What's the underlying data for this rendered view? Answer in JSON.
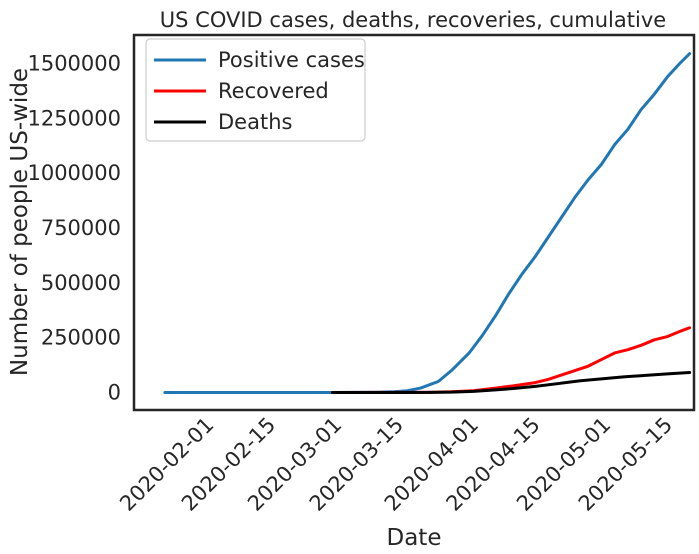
{
  "chart_data": {
    "type": "line",
    "title": "US COVID cases, deaths, recoveries, cumulative",
    "xlabel": "Date",
    "ylabel": "Number of people US-wide",
    "x_axis": {
      "type": "date",
      "range": [
        "2020-01-15",
        "2020-05-21"
      ],
      "ticks": [
        "2020-02-01",
        "2020-02-15",
        "2020-03-01",
        "2020-03-15",
        "2020-04-01",
        "2020-04-15",
        "2020-05-01",
        "2020-05-15"
      ]
    },
    "y_axis": {
      "range": [
        -80000,
        1630000
      ],
      "ticks": [
        0,
        250000,
        500000,
        750000,
        1000000,
        1250000,
        1500000
      ],
      "tick_labels": [
        "0",
        "250000",
        "500000",
        "750000",
        "1000000",
        "1250000",
        "1500000"
      ]
    },
    "grid": false,
    "legend": {
      "placement": "top-left",
      "entries": [
        "Positive cases",
        "Recovered",
        "Deaths"
      ]
    },
    "series": [
      {
        "name": "Positive cases",
        "color": "#1f77b4",
        "points": [
          [
            "2020-01-22",
            0
          ],
          [
            "2020-02-01",
            0
          ],
          [
            "2020-02-15",
            0
          ],
          [
            "2020-02-29",
            0
          ],
          [
            "2020-03-05",
            200
          ],
          [
            "2020-03-10",
            1000
          ],
          [
            "2020-03-14",
            3000
          ],
          [
            "2020-03-17",
            8000
          ],
          [
            "2020-03-20",
            20000
          ],
          [
            "2020-03-24",
            50000
          ],
          [
            "2020-03-27",
            100000
          ],
          [
            "2020-03-31",
            180000
          ],
          [
            "2020-04-03",
            260000
          ],
          [
            "2020-04-06",
            350000
          ],
          [
            "2020-04-09",
            450000
          ],
          [
            "2020-04-12",
            540000
          ],
          [
            "2020-04-15",
            620000
          ],
          [
            "2020-04-18",
            710000
          ],
          [
            "2020-04-21",
            800000
          ],
          [
            "2020-04-24",
            890000
          ],
          [
            "2020-04-27",
            970000
          ],
          [
            "2020-04-30",
            1040000
          ],
          [
            "2020-05-03",
            1130000
          ],
          [
            "2020-05-06",
            1200000
          ],
          [
            "2020-05-09",
            1290000
          ],
          [
            "2020-05-12",
            1360000
          ],
          [
            "2020-05-15",
            1440000
          ],
          [
            "2020-05-18",
            1505000
          ],
          [
            "2020-05-20",
            1545000
          ]
        ]
      },
      {
        "name": "Recovered",
        "color": "#ff0000",
        "points": [
          [
            "2020-02-29",
            0
          ],
          [
            "2020-03-15",
            200
          ],
          [
            "2020-03-22",
            500
          ],
          [
            "2020-03-27",
            3000
          ],
          [
            "2020-04-01",
            8000
          ],
          [
            "2020-04-06",
            20000
          ],
          [
            "2020-04-10",
            30000
          ],
          [
            "2020-04-15",
            45000
          ],
          [
            "2020-04-18",
            60000
          ],
          [
            "2020-04-21",
            80000
          ],
          [
            "2020-04-24",
            100000
          ],
          [
            "2020-04-27",
            120000
          ],
          [
            "2020-04-30",
            150000
          ],
          [
            "2020-05-03",
            180000
          ],
          [
            "2020-05-06",
            195000
          ],
          [
            "2020-05-09",
            215000
          ],
          [
            "2020-05-12",
            240000
          ],
          [
            "2020-05-15",
            255000
          ],
          [
            "2020-05-18",
            280000
          ],
          [
            "2020-05-20",
            295000
          ]
        ]
      },
      {
        "name": "Deaths",
        "color": "#000000",
        "points": [
          [
            "2020-02-29",
            0
          ],
          [
            "2020-03-15",
            60
          ],
          [
            "2020-03-22",
            400
          ],
          [
            "2020-03-27",
            1500
          ],
          [
            "2020-04-01",
            5000
          ],
          [
            "2020-04-06",
            12000
          ],
          [
            "2020-04-10",
            18000
          ],
          [
            "2020-04-15",
            28000
          ],
          [
            "2020-04-20",
            40000
          ],
          [
            "2020-04-25",
            53000
          ],
          [
            "2020-04-30",
            62000
          ],
          [
            "2020-05-05",
            71000
          ],
          [
            "2020-05-10",
            78000
          ],
          [
            "2020-05-15",
            85000
          ],
          [
            "2020-05-20",
            91000
          ]
        ]
      }
    ]
  }
}
